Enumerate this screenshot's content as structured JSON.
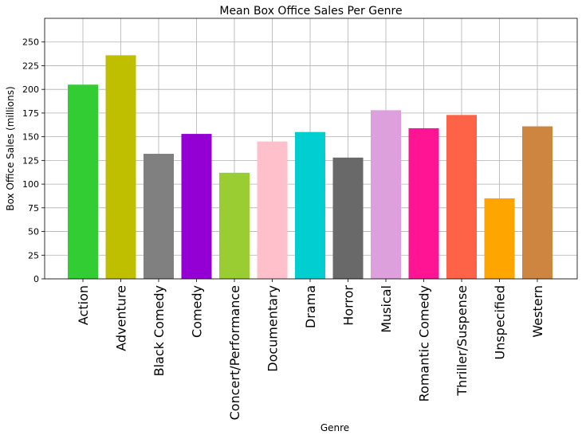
{
  "chart_data": {
    "type": "bar",
    "title": "Mean Box Office Sales Per Genre",
    "xlabel": "Genre",
    "ylabel": "Box Office Sales (millions)",
    "categories": [
      "Action",
      "Adventure",
      "Black Comedy",
      "Comedy",
      "Concert/Performance",
      "Documentary",
      "Drama",
      "Horror",
      "Musical",
      "Romantic Comedy",
      "Thriller/Suspense",
      "Unspecified",
      "Western"
    ],
    "values": [
      205,
      236,
      132,
      153,
      112,
      145,
      155,
      128,
      178,
      159,
      173,
      85,
      161
    ],
    "colors": [
      "#32cd32",
      "#bfbf00",
      "#808080",
      "#9400d3",
      "#9acd32",
      "#ffc0cb",
      "#00ced1",
      "#696969",
      "#dda0dd",
      "#ff1493",
      "#ff6347",
      "#ffa500",
      "#cd853f"
    ],
    "ylim": [
      0,
      275
    ],
    "yticks": [
      0,
      25,
      50,
      75,
      100,
      125,
      150,
      175,
      200,
      225,
      250
    ],
    "grid": true
  }
}
